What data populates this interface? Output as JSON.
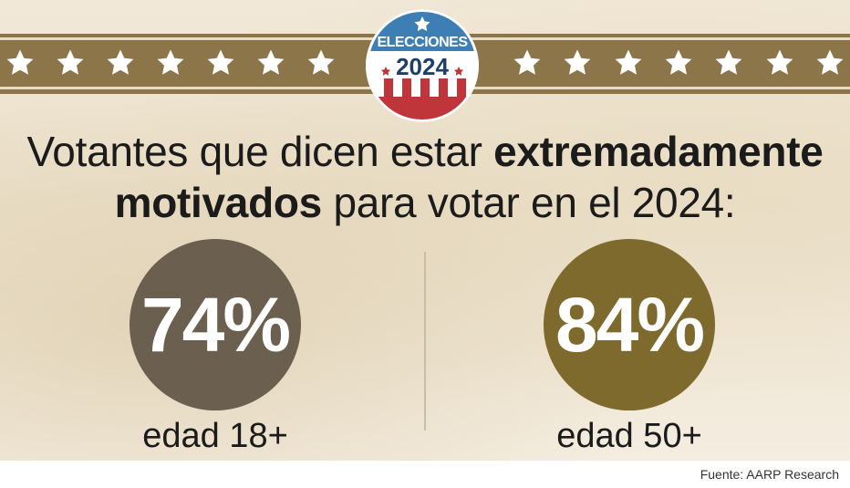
{
  "seal": {
    "top_text": "ELECCIONES",
    "year": "2024",
    "colors": {
      "blue": "#3d7fb5",
      "red": "#c0353a",
      "navy": "#1f3f66"
    }
  },
  "band": {
    "color": "#8c7548",
    "left_star_count": 7,
    "right_star_count": 7,
    "icon": "star-icon"
  },
  "headline": {
    "part1": "Votantes que dicen estar ",
    "bold1": "extremadamente",
    "bold2": "motivados",
    "part2": " para votar en el 2024:"
  },
  "stats": [
    {
      "value": "74%",
      "label": "edad 18+",
      "color": "#6b5f4f"
    },
    {
      "value": "84%",
      "label": "edad 50+",
      "color": "#7d6a2c"
    }
  ],
  "source": "Fuente: AARP Research"
}
